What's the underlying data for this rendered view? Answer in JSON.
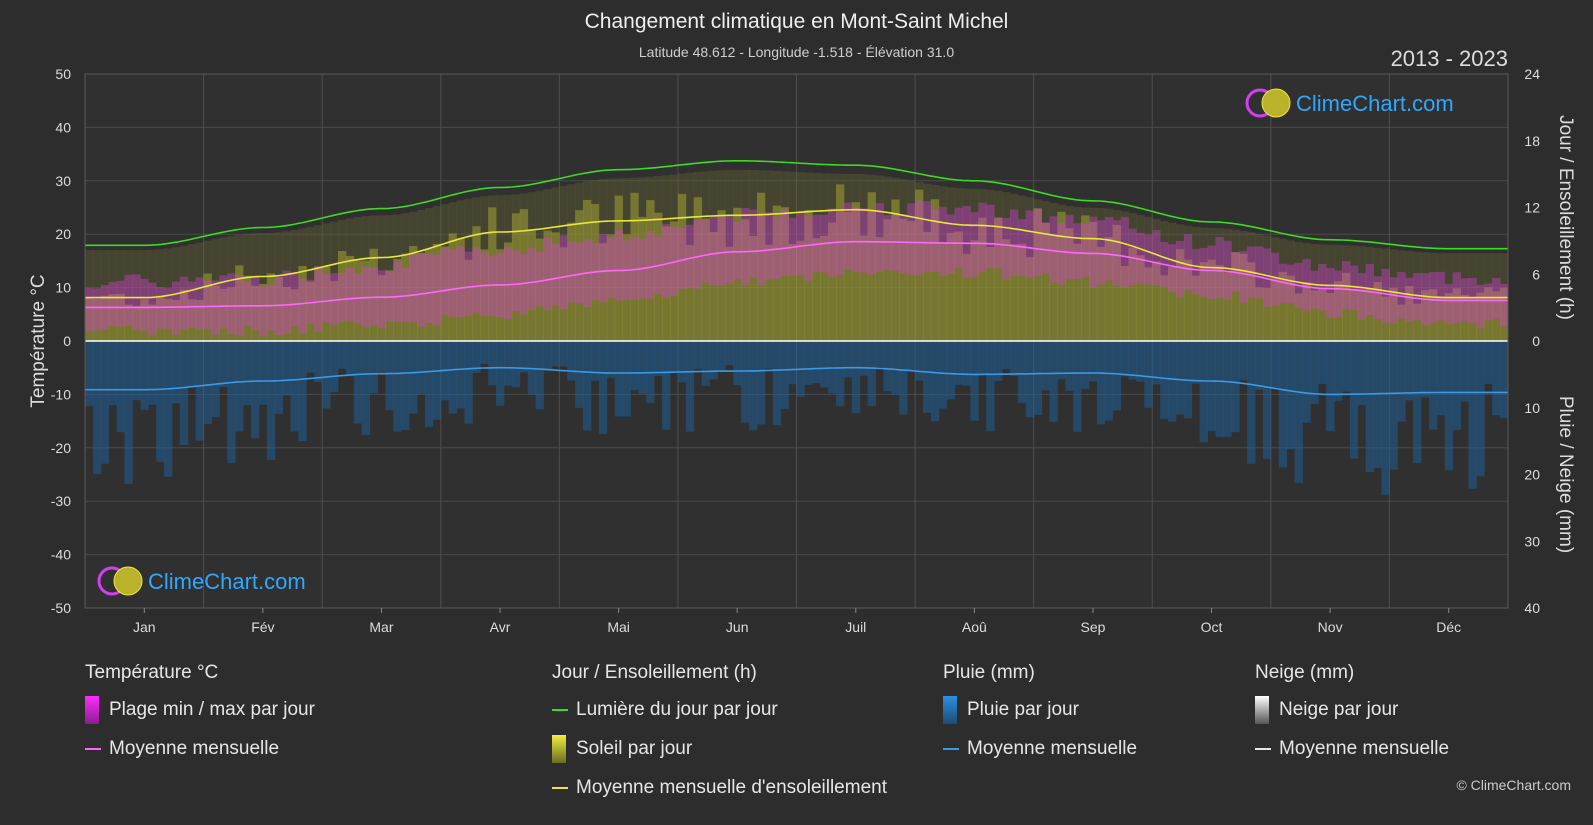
{
  "header": {
    "title": "Changement climatique en Mont-Saint Michel",
    "subtitle": "Latitude 48.612 - Longitude -1.518 - Élévation 31.0",
    "period": "2013 - 2023"
  },
  "watermark": {
    "text": "ClimeChart.com"
  },
  "copyright": "© ClimeChart.com",
  "colors": {
    "background": "#2d2d2d",
    "daylight": "#3ddc1e",
    "sunshine": "#e8e83a",
    "sunshine_fill": "#a3a332",
    "temp_mean": "#ff66ff",
    "temp_range": "#d83fd8",
    "rain": "#3a9ae8",
    "snow_mean": "#e6e6e6",
    "brand_blue": "#2ea8ff",
    "zero_line": "#ffffff"
  },
  "chart_data": {
    "type": "line",
    "categories": [
      "Jan",
      "Fév",
      "Mar",
      "Avr",
      "Mai",
      "Jun",
      "Juil",
      "Aoû",
      "Sep",
      "Oct",
      "Nov",
      "Déc"
    ],
    "left_axis": {
      "label": "Température °C",
      "range": [
        -50,
        50
      ],
      "ticks": [
        50,
        40,
        30,
        20,
        10,
        0,
        -10,
        -20,
        -30,
        -40,
        -50
      ]
    },
    "right_axis_top": {
      "label": "Jour / Ensoleillement (h)",
      "range": [
        0,
        24
      ],
      "ticks": [
        24,
        18,
        12,
        6,
        0
      ]
    },
    "right_axis_bottom": {
      "label": "Pluie / Neige (mm)",
      "range": [
        0,
        40
      ],
      "ticks": [
        0,
        10,
        20,
        30,
        40
      ]
    },
    "grid": true,
    "series": [
      {
        "name": "Lumière du jour par jour",
        "axis": "hours",
        "values": [
          8.6,
          10.2,
          11.9,
          13.8,
          15.4,
          16.2,
          15.8,
          14.4,
          12.6,
          10.7,
          9.1,
          8.3
        ]
      },
      {
        "name": "Moyenne mensuelle d'ensoleillement",
        "axis": "hours",
        "values": [
          3.9,
          5.8,
          7.5,
          9.8,
          10.8,
          11.3,
          11.8,
          10.4,
          9.2,
          6.6,
          5.0,
          3.9
        ]
      },
      {
        "name": "Moyenne mensuelle",
        "group": "Température °C",
        "axis": "celsius",
        "values": [
          6.3,
          6.6,
          8.2,
          10.5,
          13.2,
          16.7,
          18.6,
          18.3,
          16.4,
          13.2,
          9.8,
          7.6
        ]
      },
      {
        "name": "Moyenne mensuelle",
        "group": "Pluie (mm)",
        "axis": "mm",
        "values": [
          7.3,
          6.0,
          4.9,
          4.0,
          4.8,
          4.5,
          4.0,
          5.0,
          4.8,
          6.0,
          8.0,
          7.7
        ]
      },
      {
        "name": "Plage min / max par jour",
        "axis": "celsius",
        "min": [
          3.0,
          2.8,
          4.2,
          5.8,
          8.8,
          11.8,
          13.8,
          13.8,
          12.0,
          9.6,
          6.2,
          4.2
        ],
        "max": [
          9.6,
          10.2,
          13.0,
          15.8,
          18.4,
          22.0,
          23.6,
          23.4,
          21.0,
          16.8,
          12.6,
          10.4
        ]
      }
    ]
  },
  "legend": [
    {
      "heading": "Température °C",
      "items": [
        {
          "label": "Plage min / max par jour",
          "swatch": "box",
          "color": "#d83fd8"
        },
        {
          "label": "Moyenne mensuelle",
          "swatch": "line",
          "color": "#ff66ff"
        }
      ]
    },
    {
      "heading": "Jour / Ensoleillement (h)",
      "items": [
        {
          "label": "Lumière du jour par jour",
          "swatch": "line",
          "color": "#3ddc1e"
        },
        {
          "label": "Soleil par jour",
          "swatch": "box",
          "color": "#c8c83a"
        },
        {
          "label": "Moyenne mensuelle d'ensoleillement",
          "swatch": "line",
          "color": "#e8e83a"
        }
      ]
    },
    {
      "heading": "Pluie (mm)",
      "items": [
        {
          "label": "Pluie par jour",
          "swatch": "box",
          "color": "#2f8fe0"
        },
        {
          "label": "Moyenne mensuelle",
          "swatch": "line",
          "color": "#3a9ae8"
        }
      ]
    },
    {
      "heading": "Neige (mm)",
      "items": [
        {
          "label": "Neige par jour",
          "swatch": "box",
          "color": "#d0d0d0"
        },
        {
          "label": "Moyenne mensuelle",
          "swatch": "line",
          "color": "#e6e6e6"
        }
      ]
    }
  ]
}
